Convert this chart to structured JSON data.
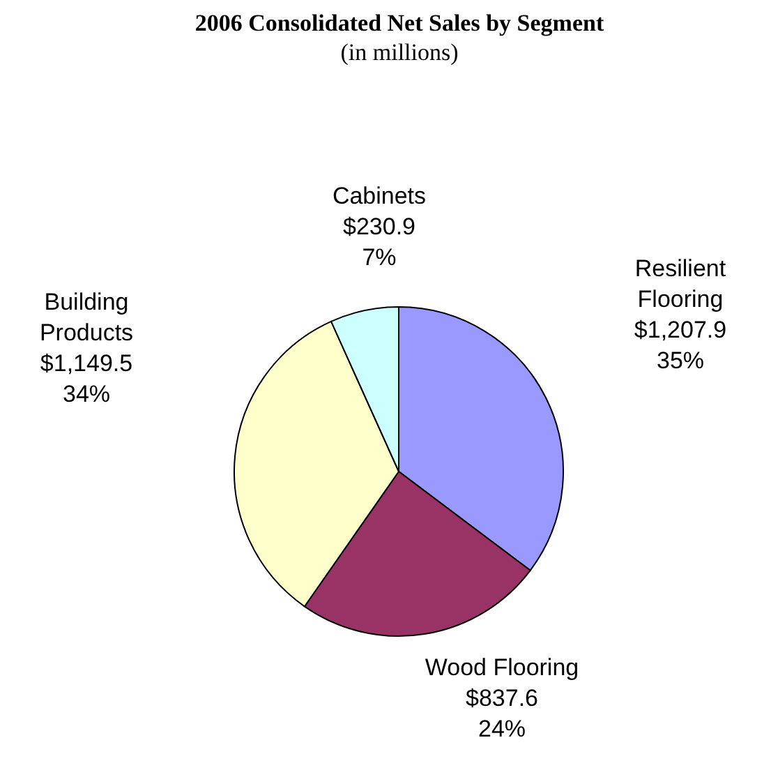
{
  "chart_data": {
    "type": "pie",
    "title": "2006 Consolidated Net Sales by Segment",
    "subtitle": "(in millions)",
    "categories": [
      "Resilient Flooring",
      "Wood Flooring",
      "Building Products",
      "Cabinets"
    ],
    "values": [
      1207.9,
      837.6,
      1149.5,
      230.9
    ],
    "colors": [
      "#9999ff",
      "#993366",
      "#ffffcc",
      "#ccffff"
    ],
    "value_labels": [
      "$1,207.9\n35%",
      "$837.6\n24%",
      "$1,149.5\n34%",
      "$230.9\n7%"
    ]
  }
}
